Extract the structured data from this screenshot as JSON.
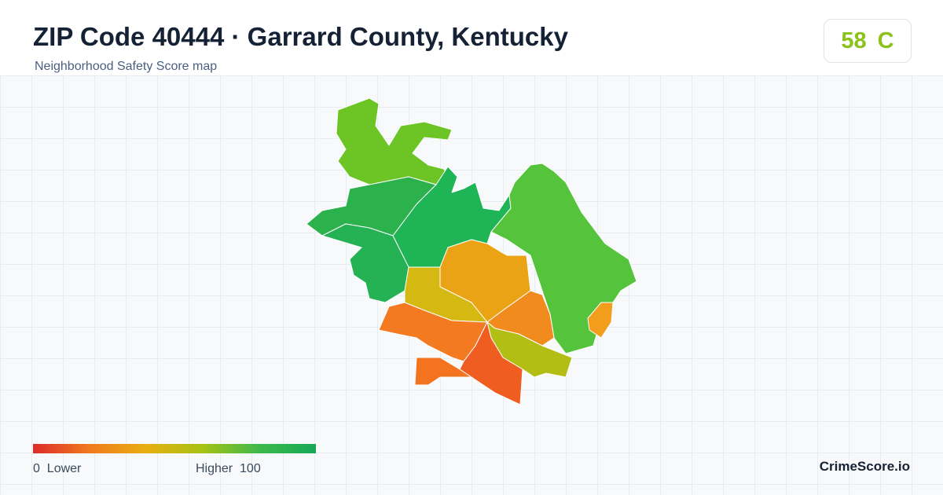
{
  "header": {
    "title": "ZIP Code 40444 · Garrard County, Kentucky",
    "subtitle": "Neighborhood Safety Score map"
  },
  "score": {
    "value": 58,
    "grade": "C"
  },
  "legend": {
    "min": 0,
    "min_label": "Lower",
    "max_label": "Higher",
    "max": 100
  },
  "brand": "CrimeScore.io"
}
